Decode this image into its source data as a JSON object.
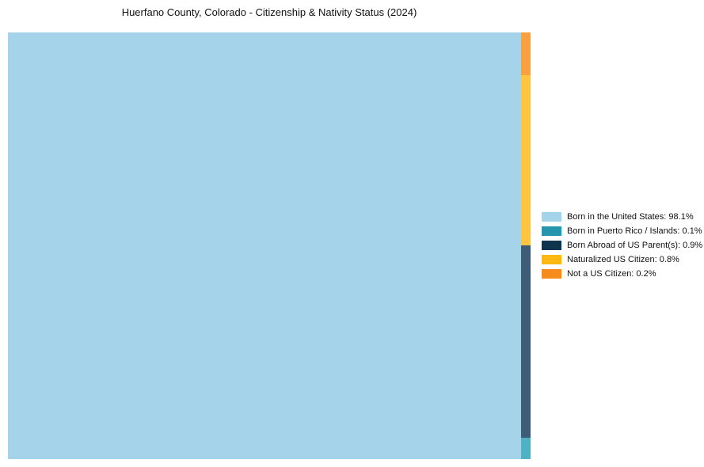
{
  "chart_data": {
    "type": "treemap",
    "title": "Huerfano County, Colorado - Citizenship & Nativity Status (2024)",
    "unit": "%",
    "categories": [
      "Born in the United States",
      "Born in Puerto Rico / Islands",
      "Born Abroad of US Parent(s)",
      "Naturalized US Citizen",
      "Not a US Citizen"
    ],
    "values": [
      98.1,
      0.1,
      0.9,
      0.8,
      0.2
    ],
    "legend_position": "right",
    "legend": [
      {
        "label": "Born in the United States: 98.1%",
        "swatch": "#A5D3E9",
        "fill": "#A5D3E9",
        "value": 98.1
      },
      {
        "label": "Born in Puerto Rico / Islands: 0.1%",
        "swatch": "#2596AD",
        "fill": "#4FB2C4",
        "value": 0.1
      },
      {
        "label": "Born Abroad of US Parent(s): 0.9%",
        "swatch": "#0F344E",
        "fill": "#3D5C77",
        "value": 0.9
      },
      {
        "label": "Naturalized US Citizen: 0.8%",
        "swatch": "#FCB813",
        "fill": "#FDC540",
        "value": 0.8
      },
      {
        "label": "Not a US Citizen: 0.2%",
        "swatch": "#F68B1E",
        "fill": "#F9A040",
        "value": 0.2
      }
    ],
    "layout": {
      "main_index": 0,
      "strip_order_top_to_bottom": [
        4,
        3,
        2,
        1
      ],
      "grid": false
    }
  }
}
